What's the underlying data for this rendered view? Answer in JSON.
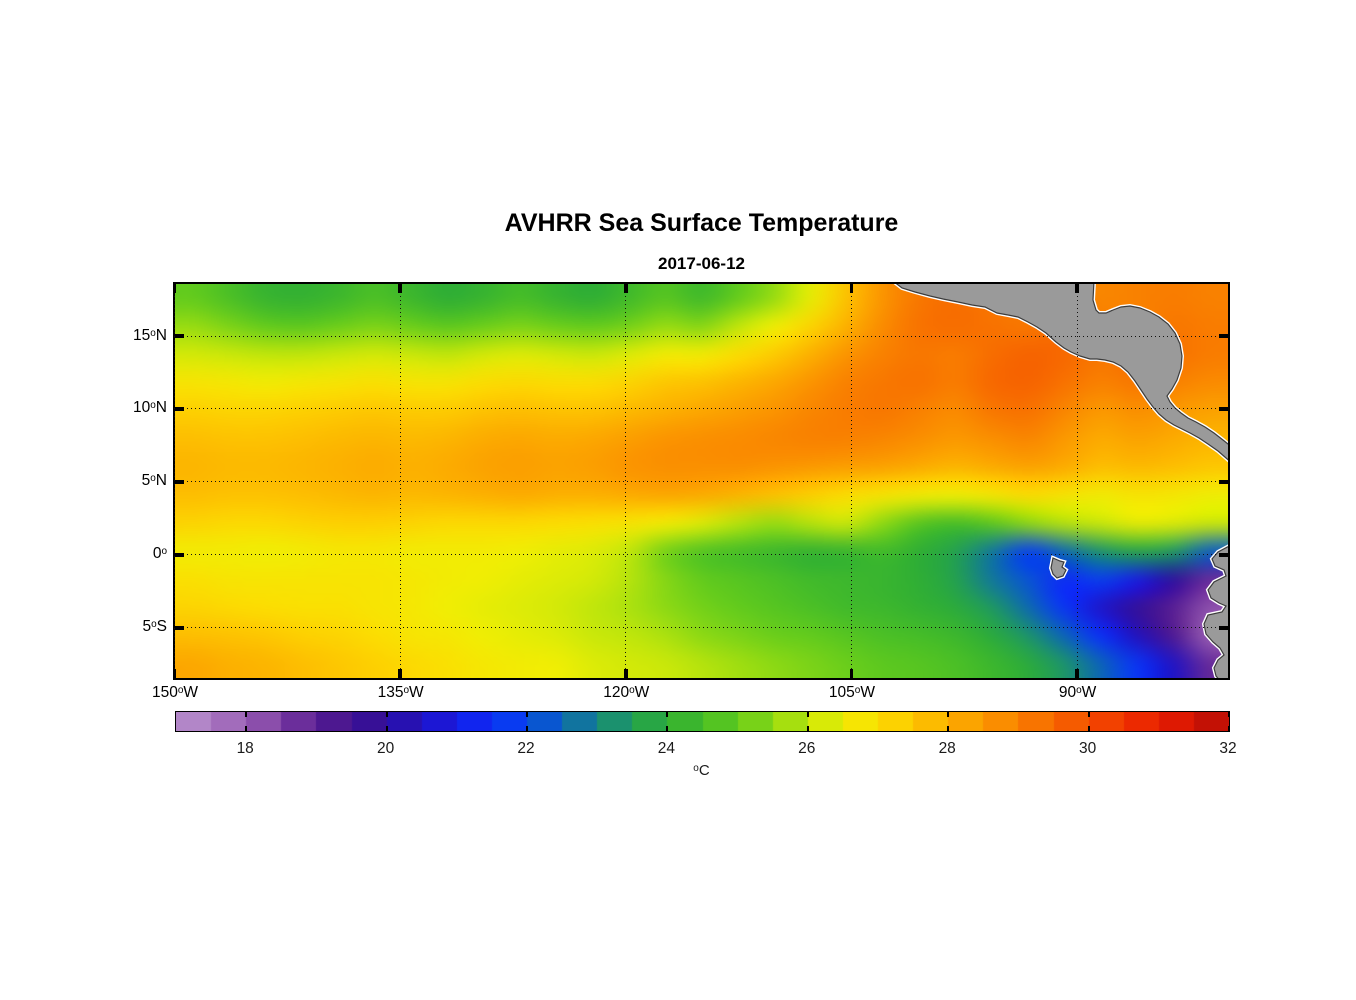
{
  "header": {
    "title": "AVHRR Sea Surface Temperature",
    "date": "2017-06-12"
  },
  "colorbar": {
    "unit": {
      "sup": "o",
      "text": "C"
    },
    "range": [
      17,
      32
    ],
    "segment_step": 0.5,
    "tick_values": [
      18,
      20,
      22,
      24,
      26,
      28,
      30,
      32
    ],
    "tick_labels": [
      "18",
      "20",
      "22",
      "24",
      "26",
      "28",
      "30",
      "32"
    ]
  },
  "axes": {
    "x_ticks": [
      {
        "value": -150,
        "pre": "150",
        "sup": "o",
        "post": "W"
      },
      {
        "value": -135,
        "pre": "135",
        "sup": "o",
        "post": "W"
      },
      {
        "value": -120,
        "pre": "120",
        "sup": "o",
        "post": "W"
      },
      {
        "value": -105,
        "pre": "105",
        "sup": "o",
        "post": "W"
      },
      {
        "value": -90,
        "pre": "90",
        "sup": "o",
        "post": "W"
      }
    ],
    "y_ticks": [
      {
        "value": 15,
        "pre": "15",
        "sup": "o",
        "post": "N"
      },
      {
        "value": 10,
        "pre": "10",
        "sup": "o",
        "post": "N"
      },
      {
        "value": 5,
        "pre": "5",
        "sup": "o",
        "post": "N"
      },
      {
        "value": 0,
        "pre": "0",
        "sup": "o",
        "post": ""
      },
      {
        "value": -5,
        "pre": "5",
        "sup": "o",
        "post": "S"
      }
    ]
  },
  "chart_data": {
    "type": "heatmap",
    "title": "AVHRR Sea Surface Temperature",
    "subtitle": "2017-06-12",
    "units": "degC",
    "grid_on": true,
    "lon_range": [
      -150,
      -80
    ],
    "lat_range": [
      -8.4,
      18.6
    ],
    "lon": [
      -150,
      -147.5,
      -145,
      -142.5,
      -140,
      -137.5,
      -135,
      -132.5,
      -130,
      -127.5,
      -125,
      -122.5,
      -120,
      -117.5,
      -115,
      -112.5,
      -110,
      -107.5,
      -105,
      -102.5,
      -100,
      -97.5,
      -95,
      -92.5,
      -90,
      -87.5,
      -85,
      -82.5,
      -80
    ],
    "lat": [
      18,
      16,
      14,
      12,
      10,
      8,
      6,
      4,
      2,
      0,
      -2,
      -4,
      -6,
      -8
    ],
    "sst": [
      [
        25.0,
        24.6,
        24.2,
        24.1,
        24.3,
        24.6,
        24.3,
        24.0,
        24.2,
        24.5,
        24.2,
        24.0,
        24.4,
        24.8,
        24.4,
        25.0,
        25.6,
        26.4,
        27.6,
        28.6,
        29.2,
        29.4,
        29.2,
        29.1,
        29.0,
        28.9,
        29.0,
        29.1,
        29.0
      ],
      [
        25.6,
        25.3,
        25.0,
        24.9,
        25.1,
        25.3,
        25.1,
        24.9,
        25.1,
        25.3,
        25.1,
        25.0,
        25.2,
        25.6,
        25.4,
        26.0,
        26.5,
        27.2,
        28.0,
        28.8,
        29.3,
        29.4,
        29.3,
        29.2,
        29.4,
        29.1,
        29.0,
        29.2,
        29.1
      ],
      [
        26.2,
        26.1,
        26.0,
        26.0,
        26.1,
        26.2,
        26.1,
        26.0,
        26.2,
        26.3,
        26.2,
        26.1,
        26.3,
        26.6,
        26.6,
        27.0,
        27.4,
        28.0,
        28.6,
        29.0,
        29.2,
        29.1,
        29.4,
        29.6,
        29.5,
        29.2,
        29.4,
        29.3,
        29.1
      ],
      [
        26.8,
        26.7,
        26.6,
        26.7,
        26.8,
        26.9,
        26.8,
        26.8,
        27.0,
        27.1,
        27.0,
        27.0,
        27.2,
        27.5,
        27.6,
        27.9,
        28.2,
        28.6,
        29.0,
        29.2,
        29.3,
        29.1,
        29.5,
        29.6,
        29.3,
        29.0,
        29.2,
        29.0,
        28.8
      ],
      [
        27.3,
        27.2,
        27.2,
        27.3,
        27.4,
        27.5,
        27.4,
        27.4,
        27.6,
        27.7,
        27.6,
        27.6,
        27.8,
        28.0,
        28.2,
        28.4,
        28.6,
        28.9,
        29.1,
        29.2,
        29.0,
        28.8,
        29.2,
        29.3,
        28.9,
        28.5,
        28.7,
        28.5,
        28.3
      ],
      [
        27.7,
        27.6,
        27.6,
        27.7,
        27.8,
        27.9,
        27.8,
        27.9,
        28.1,
        28.2,
        28.1,
        28.2,
        28.4,
        28.6,
        28.7,
        28.8,
        28.9,
        29.0,
        29.0,
        28.9,
        28.7,
        28.5,
        28.7,
        28.9,
        28.5,
        28.1,
        28.3,
        28.1,
        27.9
      ],
      [
        27.9,
        27.8,
        27.8,
        27.9,
        28.0,
        28.1,
        28.0,
        28.1,
        28.3,
        28.4,
        28.3,
        28.4,
        28.6,
        28.7,
        28.7,
        28.7,
        28.6,
        28.5,
        28.4,
        28.3,
        28.1,
        27.9,
        28.1,
        28.3,
        28.1,
        27.7,
        27.8,
        27.7,
        27.5
      ],
      [
        27.7,
        27.6,
        27.6,
        27.7,
        27.8,
        27.9,
        27.8,
        27.9,
        28.0,
        28.1,
        28.0,
        28.0,
        28.1,
        28.2,
        28.1,
        27.9,
        27.6,
        27.3,
        27.0,
        26.8,
        26.6,
        26.5,
        26.7,
        27.0,
        26.8,
        26.6,
        26.8,
        26.7,
        26.5
      ],
      [
        27.2,
        27.1,
        27.1,
        27.2,
        27.3,
        27.3,
        27.2,
        27.1,
        27.1,
        27.1,
        27.0,
        26.9,
        26.8,
        26.6,
        26.3,
        25.9,
        25.6,
        25.9,
        26.1,
        25.5,
        24.8,
        24.5,
        24.9,
        25.5,
        25.9,
        26.1,
        26.4,
        26.3,
        26.1
      ],
      [
        26.6,
        26.6,
        26.5,
        26.6,
        26.7,
        26.7,
        26.6,
        26.6,
        26.6,
        26.5,
        26.4,
        26.3,
        26.0,
        25.2,
        24.7,
        24.5,
        24.3,
        24.1,
        24.2,
        24.4,
        24.0,
        23.6,
        22.8,
        21.8,
        22.6,
        23.3,
        23.7,
        23.4,
        22.4
      ],
      [
        26.9,
        26.8,
        26.8,
        26.8,
        26.8,
        26.8,
        26.7,
        26.6,
        26.5,
        26.4,
        26.3,
        26.2,
        25.9,
        25.4,
        25.0,
        24.8,
        24.6,
        24.4,
        24.3,
        24.2,
        24.0,
        23.6,
        22.8,
        22.2,
        21.4,
        21.8,
        21.0,
        20.0,
        18.8
      ],
      [
        27.2,
        27.1,
        27.0,
        26.9,
        26.9,
        26.8,
        26.7,
        26.5,
        26.4,
        26.3,
        26.2,
        26.0,
        25.8,
        25.5,
        25.2,
        25.0,
        24.8,
        24.6,
        24.4,
        24.3,
        24.1,
        23.9,
        23.4,
        22.6,
        21.6,
        20.6,
        19.8,
        19.0,
        18.2
      ],
      [
        27.7,
        27.6,
        27.5,
        27.3,
        27.2,
        27.0,
        26.8,
        26.7,
        26.5,
        26.4,
        26.3,
        26.1,
        26.0,
        25.8,
        25.5,
        25.3,
        25.1,
        25.0,
        24.8,
        24.6,
        24.5,
        24.3,
        23.9,
        23.3,
        22.5,
        21.5,
        20.4,
        19.2,
        18.0
      ],
      [
        28.2,
        28.0,
        27.9,
        27.7,
        27.5,
        27.3,
        27.1,
        26.9,
        26.7,
        26.6,
        26.5,
        26.3,
        26.2,
        26.1,
        25.9,
        25.7,
        25.5,
        25.3,
        25.1,
        24.9,
        24.8,
        24.6,
        24.3,
        23.9,
        23.3,
        22.5,
        21.6,
        20.5,
        18.8
      ]
    ],
    "colormap_stops": [
      [
        17.0,
        "#bb93cf"
      ],
      [
        17.5,
        "#aa7ac2"
      ],
      [
        18.0,
        "#9a5fb4"
      ],
      [
        18.5,
        "#7d3da3"
      ],
      [
        19.0,
        "#5a1f93"
      ],
      [
        19.5,
        "#41128e"
      ],
      [
        20.0,
        "#2d0f9e"
      ],
      [
        20.5,
        "#2113c4"
      ],
      [
        21.0,
        "#181ce4"
      ],
      [
        21.5,
        "#0b2ffa"
      ],
      [
        22.0,
        "#0748e8"
      ],
      [
        22.5,
        "#0c64b8"
      ],
      [
        23.0,
        "#168487"
      ],
      [
        23.5,
        "#219e56"
      ],
      [
        24.0,
        "#2fae35"
      ],
      [
        24.5,
        "#46bd28"
      ],
      [
        25.0,
        "#63cb1d"
      ],
      [
        25.5,
        "#8dd914"
      ],
      [
        26.0,
        "#c0e60b"
      ],
      [
        26.5,
        "#f0ee04"
      ],
      [
        27.0,
        "#fcdd02"
      ],
      [
        27.5,
        "#fdc701"
      ],
      [
        28.0,
        "#fcb000"
      ],
      [
        28.5,
        "#fb9900"
      ],
      [
        29.0,
        "#f98100"
      ],
      [
        29.5,
        "#f76800"
      ],
      [
        30.0,
        "#f44f00"
      ],
      [
        30.5,
        "#f03400"
      ],
      [
        31.0,
        "#e91e00"
      ],
      [
        31.5,
        "#d41505"
      ],
      [
        32.0,
        "#b30d05"
      ]
    ],
    "land_color": "#9a9a9a",
    "coast_edge_color": "#3c3c3c",
    "coast_halo_color": "#ffffff",
    "land_paths": [
      "M718,-3 L919,-3 L918,16 L921,26 L924,29 L931,29 L938,26 L946,23 L955,22 L965,24 L975,28 L984,33 L993,40 L1000,49 L1005,60 L1007,72 L1006,84 L1002,96 L997,105 L992,112 L995,118 L1000,124 L1006,129 L1013,134 L1021,138 L1030,143 L1039,149 L1048,156 L1058,164 L1058,180 L1043,167 L1033,160 L1024,154 L1015,149 L1007,145 L999,141 L991,136 L984,130 L978,123 L972,115 L966,106 L960,97 L953,88 L946,82 L938,78 L930,76 L922,75 L915,75 L905,72 L896,68 L889,64 L881,58 L871,49 L862,43 L853,38 L843,33 L833,31 L822,29 L810,23 L797,21 L783,18 L768,15 L755,12 L740,8 L727,4 Z",
      "M1058,260 L1043,268 L1037,275 L1040,282 L1049,286 L1051,292 L1039,298 L1033,306 L1036,314 L1044,319 L1051,322 L1047,328 L1033,331 L1029,340 L1031,350 L1038,358 L1045,364 L1049,371 L1043,376 L1039,384 L1041,392 L1046,398 L1058,398 Z",
      "M878,274 L885,277 L889,278 L887,283 L891,286 L888,292 L882,294 L878,290 L876,284 Z"
    ],
    "land_names": [
      "central-america-landmass",
      "south-america-landmass",
      "galapagos-island"
    ]
  }
}
